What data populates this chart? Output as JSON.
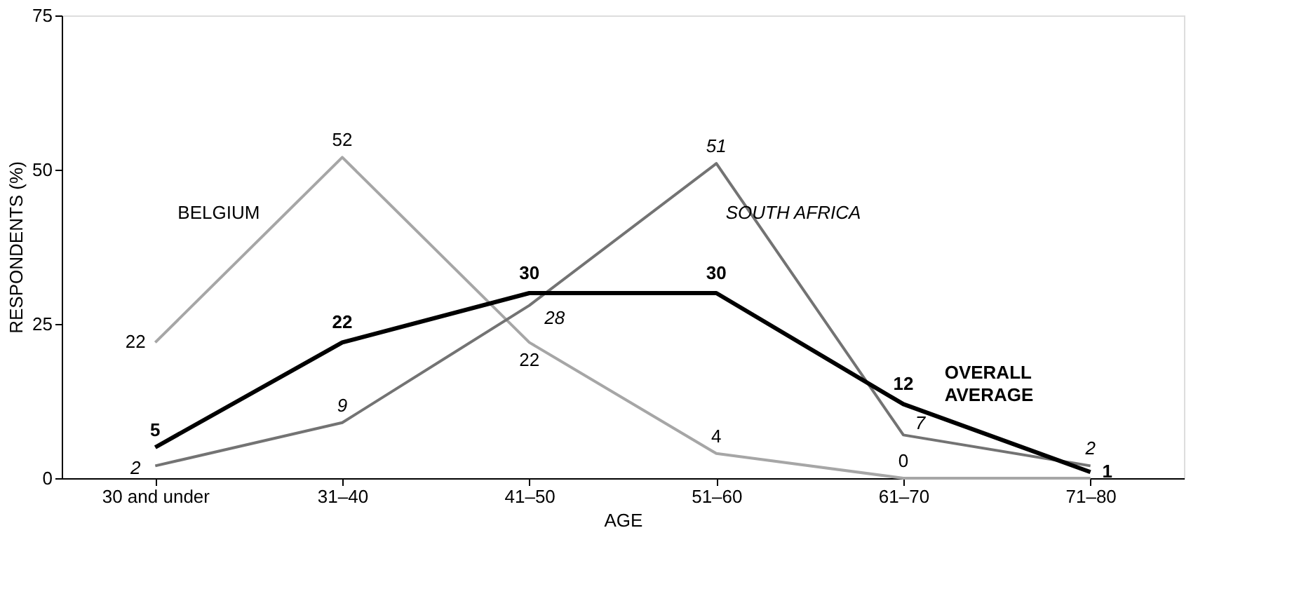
{
  "chart_data": {
    "type": "line",
    "xlabel": "AGE",
    "ylabel": "RESPONDENTS (%)",
    "categories": [
      "30 and under",
      "31–40",
      "41–50",
      "51–60",
      "61–70",
      "71–80"
    ],
    "ylim": [
      0,
      75
    ],
    "yticks": [
      0,
      25,
      50,
      75
    ],
    "grid": false,
    "legend": false,
    "marker": "none",
    "line_style": "solid",
    "series": [
      {
        "name": "BELGIUM",
        "color": "#a6a6a6",
        "values": [
          22,
          52,
          22,
          4,
          0,
          0
        ],
        "value_labels": [
          "22",
          "52",
          "22",
          "4",
          "0",
          null
        ]
      },
      {
        "name": "SOUTH AFRICA",
        "color": "#737373",
        "values": [
          2,
          9,
          28,
          51,
          7,
          2
        ],
        "value_labels": [
          "2",
          "9",
          "28",
          "51",
          "7",
          "2"
        ]
      },
      {
        "name": "OVERALL AVERAGE",
        "color": "#000000",
        "values": [
          5,
          22,
          30,
          30,
          12,
          1
        ],
        "value_labels": [
          "5",
          "22",
          "30",
          "30",
          "12",
          "1"
        ]
      }
    ]
  }
}
